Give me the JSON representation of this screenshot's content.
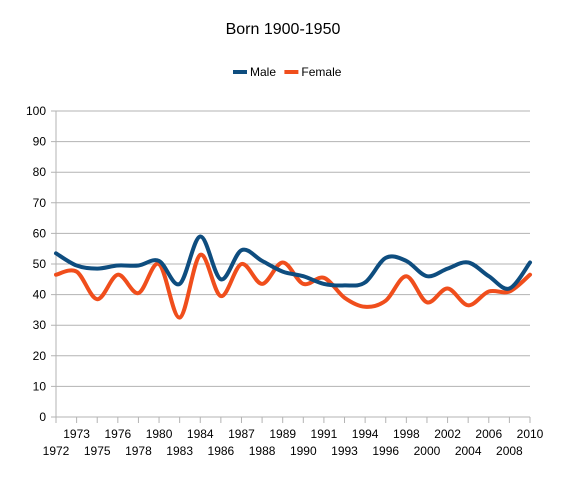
{
  "chart_data": {
    "type": "line",
    "title": "Born 1900-1950",
    "xlabel": "",
    "ylabel": "",
    "ylim": [
      0,
      100
    ],
    "yticks": [
      0,
      10,
      20,
      30,
      40,
      50,
      60,
      70,
      80,
      90,
      100
    ],
    "categories": [
      "1972",
      "1973",
      "1975",
      "1976",
      "1978",
      "1980",
      "1983",
      "1984",
      "1986",
      "1987",
      "1988",
      "1989",
      "1990",
      "1991",
      "1993",
      "1994",
      "1996",
      "1998",
      "2000",
      "2002",
      "2004",
      "2006",
      "2008",
      "2010"
    ],
    "series": [
      {
        "name": "Male",
        "color": "#0e4d7f",
        "values": [
          53.5,
          49.5,
          48.5,
          49.5,
          49.5,
          51,
          43.5,
          59,
          45,
          54.5,
          51,
          47.5,
          46,
          43.5,
          43,
          44,
          52,
          51,
          46,
          48.5,
          50.5,
          46,
          42,
          50.5
        ]
      },
      {
        "name": "Female",
        "color": "#f04e1c",
        "values": [
          46.5,
          47.5,
          38.5,
          46.5,
          40.5,
          50,
          32.5,
          53,
          39.5,
          50,
          43.5,
          50.5,
          43.5,
          45.5,
          39,
          36,
          38,
          46,
          37.5,
          42,
          36.5,
          41,
          41,
          46.5
        ]
      }
    ],
    "legend_position": "top",
    "grid": "horizontal"
  }
}
